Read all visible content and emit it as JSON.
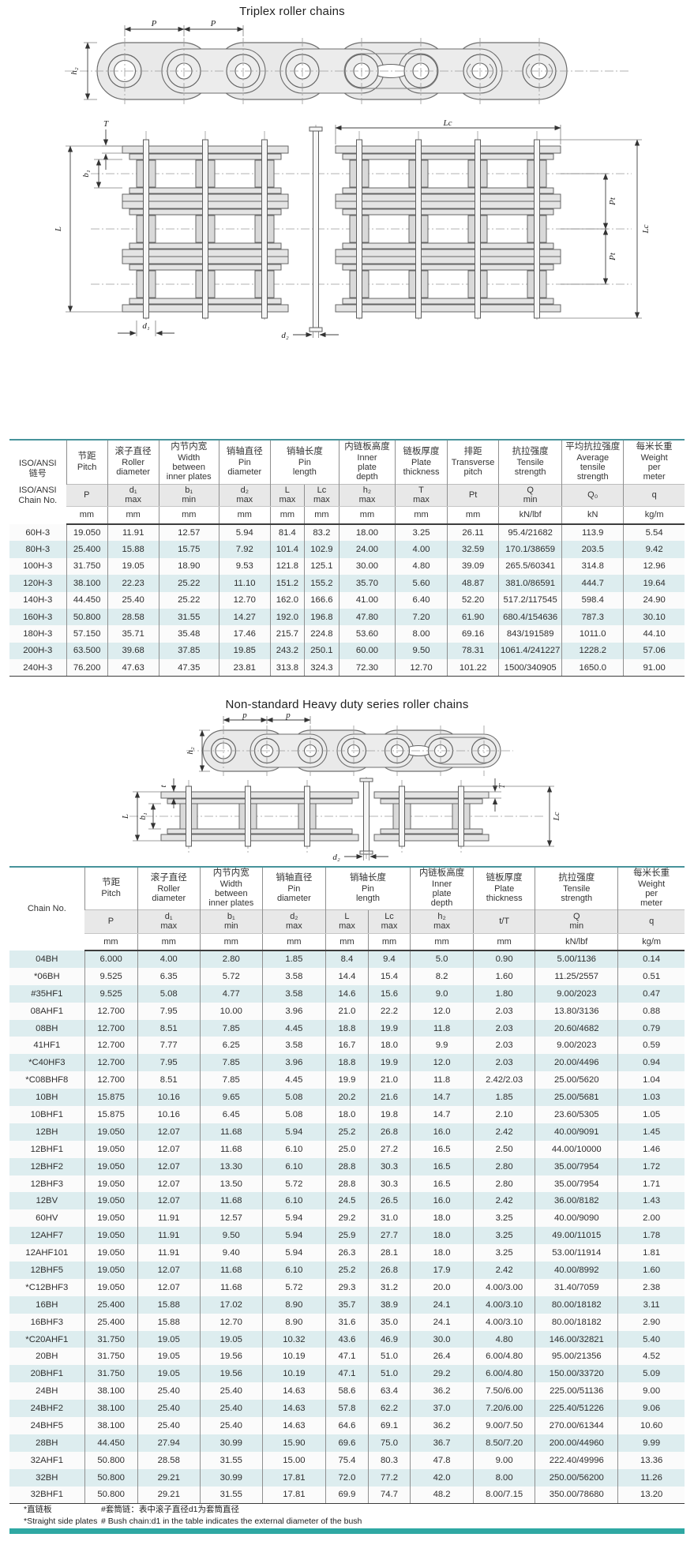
{
  "colors": {
    "table_top_border": "#47939b",
    "row_stripe": "#ddedef",
    "header_gray": "#e8e8e8",
    "footer_bar": "#2fa8a3"
  },
  "section1": {
    "title": "Triplex roller chains",
    "labels": {
      "p": "P",
      "h2": "h₂",
      "T": "T",
      "Lc": "Lc",
      "b1": "b₁",
      "L": "L",
      "Pt": "Pt",
      "d1": "d₁",
      "d2": "d₂"
    }
  },
  "table1": {
    "col0": {
      "cn": "ISO/ANSI\n链号",
      "en": "ISO/ANSI\nChain No."
    },
    "groups": [
      {
        "cn": "节距",
        "en": "Pitch",
        "sym": "P",
        "unit": "mm"
      },
      {
        "cn": "滚子直径",
        "en": "Roller\ndiameter",
        "sym": "d₁\nmax",
        "unit": "mm"
      },
      {
        "cn": "内节内宽",
        "en": "Width\nbetween\ninner plates",
        "sym": "b₁\nmin",
        "unit": "mm"
      },
      {
        "cn": "销轴直径",
        "en": "Pin\ndiameter",
        "sym": "d₂\nmax",
        "unit": "mm"
      },
      {
        "cn": "销轴长度",
        "en": "Pin\nlength",
        "sub": [
          {
            "sym": "L\nmax",
            "unit": "mm"
          },
          {
            "sym": "Lc\nmax",
            "unit": "mm"
          }
        ]
      },
      {
        "cn": "内链板高度",
        "en": "Inner\nplate\ndepth",
        "sym": "h₂\nmax",
        "unit": "mm"
      },
      {
        "cn": "链板厚度",
        "en": "Plate\nthickness",
        "sym": "T\nmax",
        "unit": "mm"
      },
      {
        "cn": "排距",
        "en": "Transverse\npitch",
        "sym": "Pt",
        "unit": "mm"
      },
      {
        "cn": "抗拉强度",
        "en": "Tensile\nstrength",
        "sym": "Q\nmin",
        "unit": "kN/lbf"
      },
      {
        "cn": "平均抗拉强度",
        "en": "Average\ntensile\nstrength",
        "sym": "Q₀",
        "unit": "kN"
      },
      {
        "cn": "每米长重",
        "en": "Weight\nper\nmeter",
        "sym": "q",
        "unit": "kg/m"
      }
    ],
    "rows": [
      [
        "60H-3",
        "19.050",
        "11.91",
        "12.57",
        "5.94",
        "81.4",
        "83.2",
        "18.00",
        "3.25",
        "26.11",
        "95.4/21682",
        "113.9",
        "5.54"
      ],
      [
        "80H-3",
        "25.400",
        "15.88",
        "15.75",
        "7.92",
        "101.4",
        "102.9",
        "24.00",
        "4.00",
        "32.59",
        "170.1/38659",
        "203.5",
        "9.42"
      ],
      [
        "100H-3",
        "31.750",
        "19.05",
        "18.90",
        "9.53",
        "121.8",
        "125.1",
        "30.00",
        "4.80",
        "39.09",
        "265.5/60341",
        "314.8",
        "12.96"
      ],
      [
        "120H-3",
        "38.100",
        "22.23",
        "25.22",
        "11.10",
        "151.2",
        "155.2",
        "35.70",
        "5.60",
        "48.87",
        "381.0/86591",
        "444.7",
        "19.64"
      ],
      [
        "140H-3",
        "44.450",
        "25.40",
        "25.22",
        "12.70",
        "162.0",
        "166.6",
        "41.00",
        "6.40",
        "52.20",
        "517.2/117545",
        "598.4",
        "24.90"
      ],
      [
        "160H-3",
        "50.800",
        "28.58",
        "31.55",
        "14.27",
        "192.0",
        "196.8",
        "47.80",
        "7.20",
        "61.90",
        "680.4/154636",
        "787.3",
        "30.10"
      ],
      [
        "180H-3",
        "57.150",
        "35.71",
        "35.48",
        "17.46",
        "215.7",
        "224.8",
        "53.60",
        "8.00",
        "69.16",
        "843/191589",
        "1011.0",
        "44.10"
      ],
      [
        "200H-3",
        "63.500",
        "39.68",
        "37.85",
        "19.85",
        "243.2",
        "250.1",
        "60.00",
        "9.50",
        "78.31",
        "1061.4/241227",
        "1228.2",
        "57.06"
      ],
      [
        "240H-3",
        "76.200",
        "47.63",
        "47.35",
        "23.81",
        "313.8",
        "324.3",
        "72.30",
        "12.70",
        "101.22",
        "1500/340905",
        "1650.0",
        "91.00"
      ]
    ]
  },
  "section2": {
    "title": "Non-standard Heavy duty series roller chains",
    "labels": {
      "p": "p",
      "h2": "h₂",
      "t": "t",
      "T": "T",
      "L": "L",
      "b1": "b₁",
      "Lc": "Lc",
      "d2": "d₂"
    }
  },
  "table2": {
    "col0": {
      "cn": "",
      "en": "Chain No."
    },
    "groups": [
      {
        "cn": "节距",
        "en": "Pitch",
        "sym": "P",
        "unit": "mm"
      },
      {
        "cn": "滚子直径",
        "en": "Roller\ndiameter",
        "sym": "d₁\nmax",
        "unit": "mm"
      },
      {
        "cn": "内节内宽",
        "en": "Width\nbetween\ninner plates",
        "sym": "b₁\nmin",
        "unit": "mm"
      },
      {
        "cn": "销轴直径",
        "en": "Pin\ndiameter",
        "sym": "d₂\nmax",
        "unit": "mm"
      },
      {
        "cn": "销轴长度",
        "en": "Pin\nlength",
        "sub": [
          {
            "sym": "L\nmax",
            "unit": "mm"
          },
          {
            "sym": "Lc\nmax",
            "unit": "mm"
          }
        ]
      },
      {
        "cn": "内链板高度",
        "en": "Inner\nplate\ndepth",
        "sym": "h₂\nmax",
        "unit": "mm"
      },
      {
        "cn": "链板厚度",
        "en": "Plate\nthickness",
        "sym": "t/T",
        "unit": "mm"
      },
      {
        "cn": "抗拉强度",
        "en": "Tensile\nstrength",
        "sym": "Q\nmin",
        "unit": "kN/lbf"
      },
      {
        "cn": "每米长重",
        "en": "Weight\nper\nmeter",
        "sym": "q",
        "unit": "kg/m"
      }
    ],
    "rows": [
      [
        "04BH",
        "6.000",
        "4.00",
        "2.80",
        "1.85",
        "8.4",
        "9.4",
        "5.0",
        "0.90",
        "5.00/1136",
        "0.14"
      ],
      [
        "*06BH",
        "9.525",
        "6.35",
        "5.72",
        "3.58",
        "14.4",
        "15.4",
        "8.2",
        "1.60",
        "11.25/2557",
        "0.51"
      ],
      [
        "#35HF1",
        "9.525",
        "5.08",
        "4.77",
        "3.58",
        "14.6",
        "15.6",
        "9.0",
        "1.80",
        "9.00/2023",
        "0.47"
      ],
      [
        "08AHF1",
        "12.700",
        "7.95",
        "10.00",
        "3.96",
        "21.0",
        "22.2",
        "12.0",
        "2.03",
        "13.80/3136",
        "0.88"
      ],
      [
        "08BH",
        "12.700",
        "8.51",
        "7.85",
        "4.45",
        "18.8",
        "19.9",
        "11.8",
        "2.03",
        "20.60/4682",
        "0.79"
      ],
      [
        "41HF1",
        "12.700",
        "7.77",
        "6.25",
        "3.58",
        "16.7",
        "18.0",
        "9.9",
        "2.03",
        "9.00/2023",
        "0.59"
      ],
      [
        "*C40HF3",
        "12.700",
        "7.95",
        "7.85",
        "3.96",
        "18.8",
        "19.9",
        "12.0",
        "2.03",
        "20.00/4496",
        "0.94"
      ],
      [
        "*C08BHF8",
        "12.700",
        "8.51",
        "7.85",
        "4.45",
        "19.9",
        "21.0",
        "11.8",
        "2.42/2.03",
        "25.00/5620",
        "1.04"
      ],
      [
        "10BH",
        "15.875",
        "10.16",
        "9.65",
        "5.08",
        "20.2",
        "21.6",
        "14.7",
        "1.85",
        "25.00/5681",
        "1.03"
      ],
      [
        "10BHF1",
        "15.875",
        "10.16",
        "6.45",
        "5.08",
        "18.0",
        "19.8",
        "14.7",
        "2.10",
        "23.60/5305",
        "1.05"
      ],
      [
        "12BH",
        "19.050",
        "12.07",
        "11.68",
        "5.94",
        "25.2",
        "26.8",
        "16.0",
        "2.42",
        "40.00/9091",
        "1.45"
      ],
      [
        "12BHF1",
        "19.050",
        "12.07",
        "11.68",
        "6.10",
        "25.0",
        "27.2",
        "16.5",
        "2.50",
        "44.00/10000",
        "1.46"
      ],
      [
        "12BHF2",
        "19.050",
        "12.07",
        "13.30",
        "6.10",
        "28.8",
        "30.3",
        "16.5",
        "2.80",
        "35.00/7954",
        "1.72"
      ],
      [
        "12BHF3",
        "19.050",
        "12.07",
        "13.50",
        "5.72",
        "28.8",
        "30.3",
        "16.5",
        "2.80",
        "35.00/7954",
        "1.71"
      ],
      [
        "12BV",
        "19.050",
        "12.07",
        "11.68",
        "6.10",
        "24.5",
        "26.5",
        "16.0",
        "2.42",
        "36.00/8182",
        "1.43"
      ],
      [
        "60HV",
        "19.050",
        "11.91",
        "12.57",
        "5.94",
        "29.2",
        "31.0",
        "18.0",
        "3.25",
        "40.00/9090",
        "2.00"
      ],
      [
        "12AHF7",
        "19.050",
        "11.91",
        "9.50",
        "5.94",
        "25.9",
        "27.7",
        "18.0",
        "3.25",
        "49.00/11015",
        "1.78"
      ],
      [
        "12AHF101",
        "19.050",
        "11.91",
        "9.40",
        "5.94",
        "26.3",
        "28.1",
        "18.0",
        "3.25",
        "53.00/11914",
        "1.81"
      ],
      [
        "12BHF5",
        "19.050",
        "12.07",
        "11.68",
        "6.10",
        "25.2",
        "26.8",
        "17.9",
        "2.42",
        "40.00/8992",
        "1.60"
      ],
      [
        "*C12BHF3",
        "19.050",
        "12.07",
        "11.68",
        "5.72",
        "29.3",
        "31.2",
        "20.0",
        "4.00/3.00",
        "31.40/7059",
        "2.38"
      ],
      [
        "16BH",
        "25.400",
        "15.88",
        "17.02",
        "8.90",
        "35.7",
        "38.9",
        "24.1",
        "4.00/3.10",
        "80.00/18182",
        "3.11"
      ],
      [
        "16BHF3",
        "25.400",
        "15.88",
        "12.70",
        "8.90",
        "31.6",
        "35.0",
        "24.1",
        "4.00/3.10",
        "80.00/18182",
        "2.90"
      ],
      [
        "*C20AHF1",
        "31.750",
        "19.05",
        "19.05",
        "10.32",
        "43.6",
        "46.9",
        "30.0",
        "4.80",
        "146.00/32821",
        "5.40"
      ],
      [
        "20BH",
        "31.750",
        "19.05",
        "19.56",
        "10.19",
        "47.1",
        "51.0",
        "26.4",
        "6.00/4.80",
        "95.00/21356",
        "4.52"
      ],
      [
        "20BHF1",
        "31.750",
        "19.05",
        "19.56",
        "10.19",
        "47.1",
        "51.0",
        "29.2",
        "6.00/4.80",
        "150.00/33720",
        "5.09"
      ],
      [
        "24BH",
        "38.100",
        "25.40",
        "25.40",
        "14.63",
        "58.6",
        "63.4",
        "36.2",
        "7.50/6.00",
        "225.00/51136",
        "9.00"
      ],
      [
        "24BHF2",
        "38.100",
        "25.40",
        "25.40",
        "14.63",
        "57.8",
        "62.2",
        "37.0",
        "7.20/6.00",
        "225.40/51226",
        "9.06"
      ],
      [
        "24BHF5",
        "38.100",
        "25.40",
        "25.40",
        "14.63",
        "64.6",
        "69.1",
        "36.2",
        "9.00/7.50",
        "270.00/61344",
        "10.60"
      ],
      [
        "28BH",
        "44.450",
        "27.94",
        "30.99",
        "15.90",
        "69.6",
        "75.0",
        "36.7",
        "8.50/7.20",
        "200.00/44960",
        "9.99"
      ],
      [
        "32AHF1",
        "50.800",
        "28.58",
        "31.55",
        "15.00",
        "75.4",
        "80.3",
        "47.8",
        "9.00",
        "222.40/49996",
        "13.36"
      ],
      [
        "32BH",
        "50.800",
        "29.21",
        "30.99",
        "17.81",
        "72.0",
        "77.2",
        "42.0",
        "8.00",
        "250.00/56200",
        "11.26"
      ],
      [
        "32BHF1",
        "50.800",
        "29.21",
        "31.55",
        "17.81",
        "69.9",
        "74.7",
        "48.2",
        "8.00/7.15",
        "350.00/78680",
        "13.20"
      ]
    ]
  },
  "footnotes": {
    "left": [
      "*直链板",
      "*Straight side plates"
    ],
    "right": [
      "#套筒链：表中滚子直径d1为套筒直径",
      "# Bush chain:d1 in the table indicates the external diameter of the bush"
    ]
  },
  "table_widths": {
    "table1": [
      72,
      52,
      65,
      76,
      65,
      43,
      44,
      71,
      66,
      65,
      80,
      78,
      77
    ],
    "table2": [
      95,
      67,
      79,
      79,
      80,
      54,
      53,
      80,
      78,
      105,
      84
    ]
  }
}
